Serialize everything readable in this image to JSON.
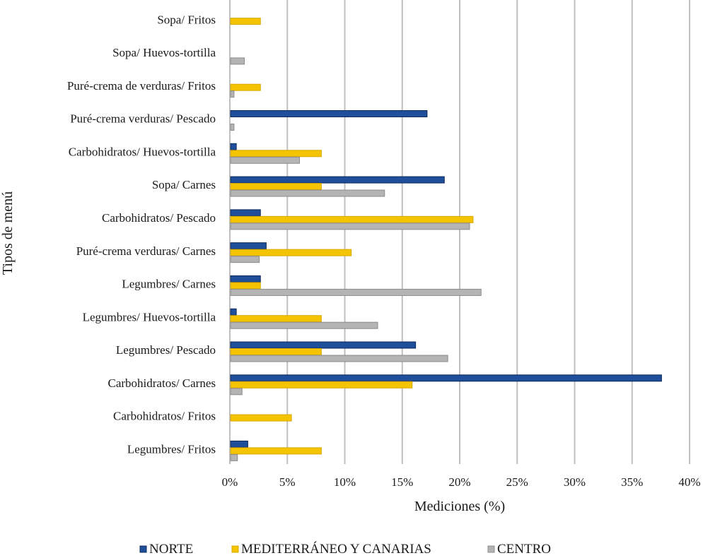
{
  "chart_data": {
    "type": "bar",
    "orientation": "horizontal",
    "title": "",
    "xlabel": "Mediciones (%)",
    "ylabel": "Tipos de menú",
    "xlim": [
      0,
      40
    ],
    "x_ticks": [
      "0%",
      "5%",
      "10%",
      "15%",
      "20%",
      "25%",
      "30%",
      "35%",
      "40%"
    ],
    "x_tick_values": [
      0,
      5,
      10,
      15,
      20,
      25,
      30,
      35,
      40
    ],
    "grid": "vertical",
    "legend_position": "bottom",
    "categories": [
      "Sopa/ Fritos",
      "Sopa/ Huevos-tortilla",
      "Puré-crema de verduras/ Fritos",
      "Puré-crema verduras/ Pescado",
      "Carbohidratos/ Huevos-tortilla",
      "Sopa/ Carnes",
      "Carbohidratos/ Pescado",
      "Puré-crema verduras/ Carnes",
      "Legumbres/ Carnes",
      "Legumbres/ Huevos-tortilla",
      "Legumbres/ Pescado",
      "Carbohidratos/ Carnes",
      "Carbohidratos/ Fritos",
      "Legumbres/ Fritos"
    ],
    "series": [
      {
        "name": "NORTE",
        "color": "#1f4e9a",
        "values": [
          0,
          0,
          0,
          17.1,
          0.5,
          18.6,
          2.6,
          3.1,
          2.6,
          0.5,
          16.1,
          37.5,
          0,
          1.5
        ]
      },
      {
        "name": "MEDITERRÁNEO Y CANARIAS",
        "color": "#f5c400",
        "values": [
          2.6,
          0,
          2.6,
          0,
          7.9,
          7.9,
          21.1,
          10.5,
          2.6,
          7.9,
          7.9,
          15.8,
          5.3,
          7.9
        ]
      },
      {
        "name": "CENTRO",
        "color": "#b4b4b4",
        "values": [
          0,
          1.2,
          0.3,
          0.3,
          6.0,
          13.4,
          20.8,
          2.5,
          21.8,
          12.8,
          18.9,
          1.0,
          0,
          0.6
        ]
      }
    ]
  }
}
